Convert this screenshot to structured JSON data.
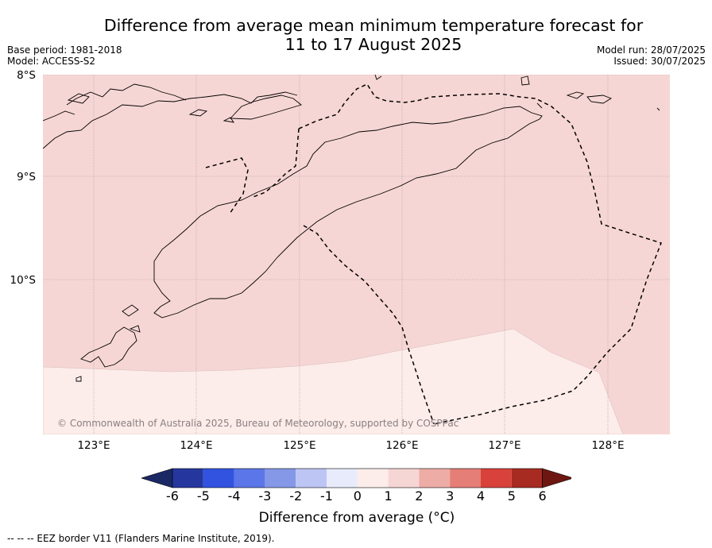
{
  "title_line1": "Difference from average mean minimum temperature forecast for",
  "title_line2": "11 to 17 August 2025",
  "base_period": "Base period: 1981-2018",
  "model": "Model: ACCESS-S2",
  "model_run": "Model run: 28/07/2025",
  "issued": "Issued: 30/07/2025",
  "lat_labels": [
    "8°S",
    "9°S",
    "10°S"
  ],
  "lon_labels": [
    "123°E",
    "124°E",
    "125°E",
    "126°E",
    "127°E",
    "128°E"
  ],
  "copyright": "© Commonwealth of Australia 2025, Bureau of Meteorology, supported by COSPPac",
  "colorbar": {
    "ticks": [
      "-6",
      "-5",
      "-4",
      "-3",
      "-2",
      "-1",
      "0",
      "1",
      "2",
      "3",
      "4",
      "5",
      "6"
    ],
    "colors": [
      "#25379f",
      "#3253e0",
      "#5b76e8",
      "#8598e8",
      "#bcc5f4",
      "#e8ebfb",
      "#fcecea",
      "#f6d6d4",
      "#eeaca6",
      "#e57e76",
      "#d8423a",
      "#a82b22"
    ],
    "under_color": "#1b2866",
    "over_color": "#6e1712",
    "label": "Difference from average (°C)"
  },
  "footnote": "-- -- -- EEZ border V11 (Flanders Marine Institute, 2019)."
}
